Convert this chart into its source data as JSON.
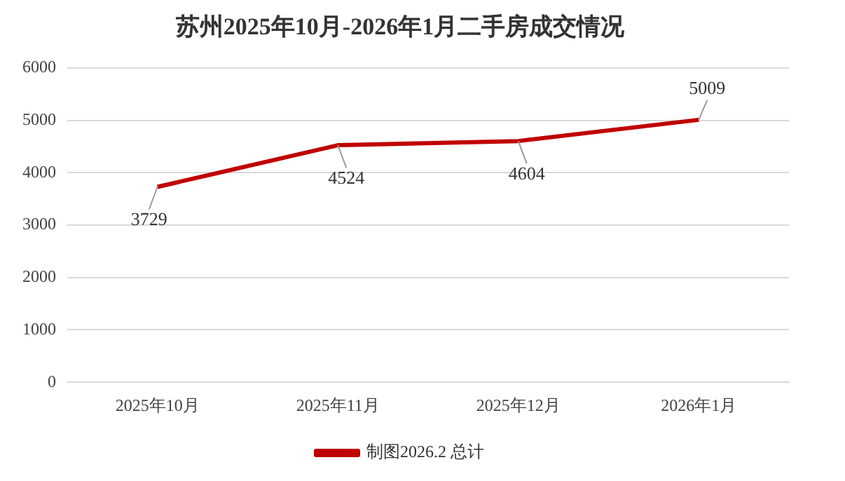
{
  "chart_data": {
    "type": "line",
    "title": "苏州2025年10月-2026年1月二手房成交情况",
    "categories": [
      "2025年10月",
      "2025年11月",
      "2025年12月",
      "2026年1月"
    ],
    "series": [
      {
        "name": "制图2026.2 总计",
        "color": "#c00000",
        "values": [
          3729,
          4524,
          4604,
          5009
        ]
      }
    ],
    "ylim": [
      0,
      6000
    ],
    "yticks": [
      0,
      1000,
      2000,
      3000,
      4000,
      5000,
      6000
    ],
    "grid": "y",
    "legend": "bottom",
    "data_labels": true,
    "marker": "none",
    "line_style": "solid"
  }
}
